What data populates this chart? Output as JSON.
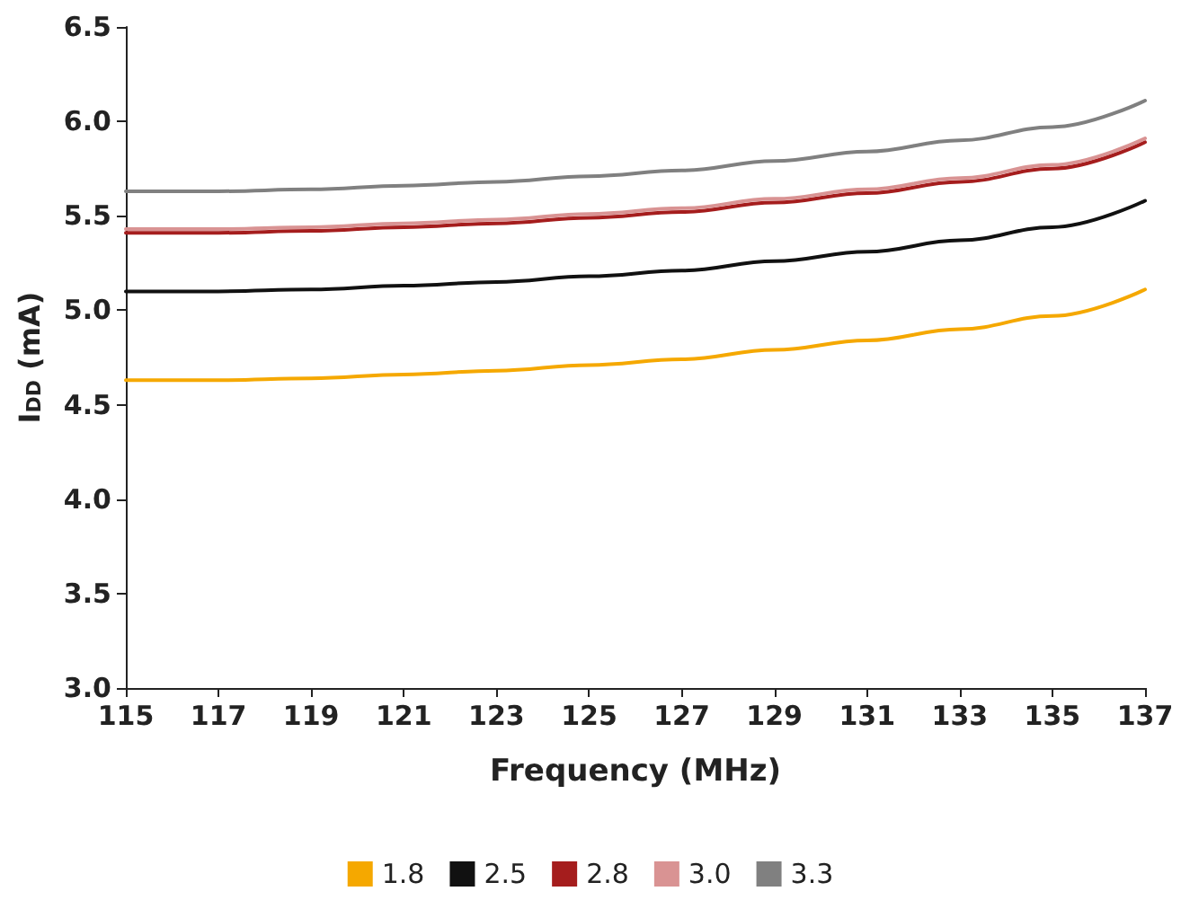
{
  "chart_data": {
    "type": "line",
    "xlabel": "Frequency (MHz)",
    "ylabel": "I$_{DD}$ (mA)",
    "x": [
      115,
      117,
      119,
      121,
      123,
      125,
      127,
      129,
      131,
      133,
      135,
      137
    ],
    "xlim": [
      115,
      137
    ],
    "xticks": [
      115,
      117,
      119,
      121,
      123,
      125,
      127,
      129,
      131,
      133,
      135,
      137
    ],
    "ylim": [
      3.0,
      6.5
    ],
    "yticks": [
      {
        "value": 3.0,
        "label": "3.0"
      },
      {
        "value": 3.5,
        "label": "3.5"
      },
      {
        "value": 4.0,
        "label": "4.0"
      },
      {
        "value": 4.5,
        "label": "4.5"
      },
      {
        "value": 5.0,
        "label": "5.0"
      },
      {
        "value": 5.5,
        "label": "5.5"
      },
      {
        "value": 6.0,
        "label": "6.0"
      },
      {
        "value": 6.5,
        "label": "6.5"
      }
    ],
    "series": [
      {
        "name": "1.8",
        "color": "#f5a800",
        "values": [
          4.63,
          4.63,
          4.64,
          4.66,
          4.68,
          4.71,
          4.74,
          4.79,
          4.84,
          4.9,
          4.97,
          5.11
        ]
      },
      {
        "name": "2.5",
        "color": "#111111",
        "values": [
          5.1,
          5.1,
          5.11,
          5.13,
          5.15,
          5.18,
          5.21,
          5.26,
          5.31,
          5.37,
          5.44,
          5.58
        ]
      },
      {
        "name": "2.8",
        "color": "#a51d1d",
        "values": [
          5.41,
          5.41,
          5.42,
          5.44,
          5.46,
          5.49,
          5.52,
          5.57,
          5.62,
          5.68,
          5.75,
          5.89
        ]
      },
      {
        "name": "3.0",
        "color": "#d99393",
        "values": [
          5.43,
          5.43,
          5.44,
          5.46,
          5.48,
          5.51,
          5.54,
          5.59,
          5.64,
          5.7,
          5.77,
          5.91
        ]
      },
      {
        "name": "3.3",
        "color": "#808080",
        "values": [
          5.63,
          5.63,
          5.64,
          5.66,
          5.68,
          5.71,
          5.74,
          5.79,
          5.84,
          5.9,
          5.97,
          6.11
        ]
      }
    ],
    "grid": false,
    "legend": "bottom",
    "marker": "none",
    "line_style": "solid"
  }
}
